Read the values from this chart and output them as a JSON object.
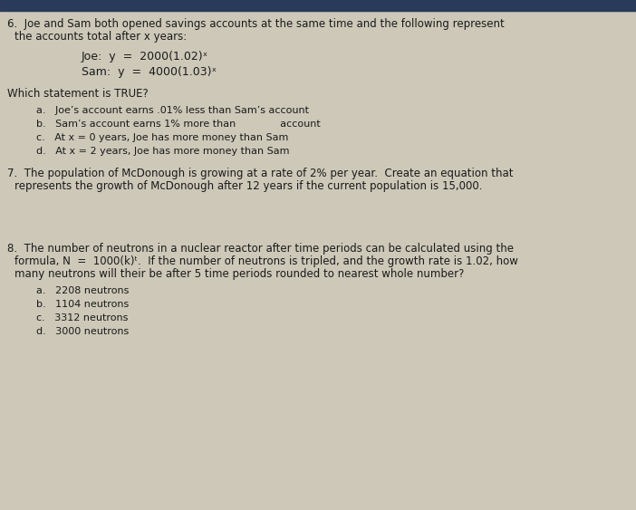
{
  "bg_color": "#cdc8b8",
  "text_color": "#1a1a1a",
  "top_bar_color": "#2a3a5a",
  "font_size_body": 8.5,
  "font_size_eq": 9.0,
  "font_size_choice": 8.0,
  "q6_line1": "6.  Joe and Sam both opened savings accounts at the same time and the following represent",
  "q6_line2": "the accounts total after x years:",
  "joe_eq": "Joe:  y  =  2000(1.02)ˣ",
  "sam_eq": "Sam:  y  =  4000(1.03)ˣ",
  "which": "Which statement is TRUE?",
  "choices6": [
    "a.   Joe’s account earns .01% less than Sam’s account",
    "b.   Sam’s account earns 1% more than              account",
    "c.   At x = 0 years, Joe has more money than Sam",
    "d.   At x = 2 years, Joe has more money than Sam"
  ],
  "q7_line1": "7.  The population of McDonough is growing at a rate of 2% per year.  Create an equation that",
  "q7_line2": "represents the growth of McDonough after 12 years if the current population is 15,000.",
  "q8_line1": "8.  The number of neutrons in a nuclear reactor after time periods can be calculated using the",
  "q8_line2": "formula, N  =  1000(k)ᵗ.  If the number of neutrons is tripled, and the growth rate is 1.02, how",
  "q8_line3": "many neutrons will their be after 5 time periods rounded to nearest whole number?",
  "choices8": [
    "a.   2208 neutrons",
    "b.   1104 neutrons",
    "c.   3312 neutrons",
    "d.   3000 neutrons"
  ]
}
